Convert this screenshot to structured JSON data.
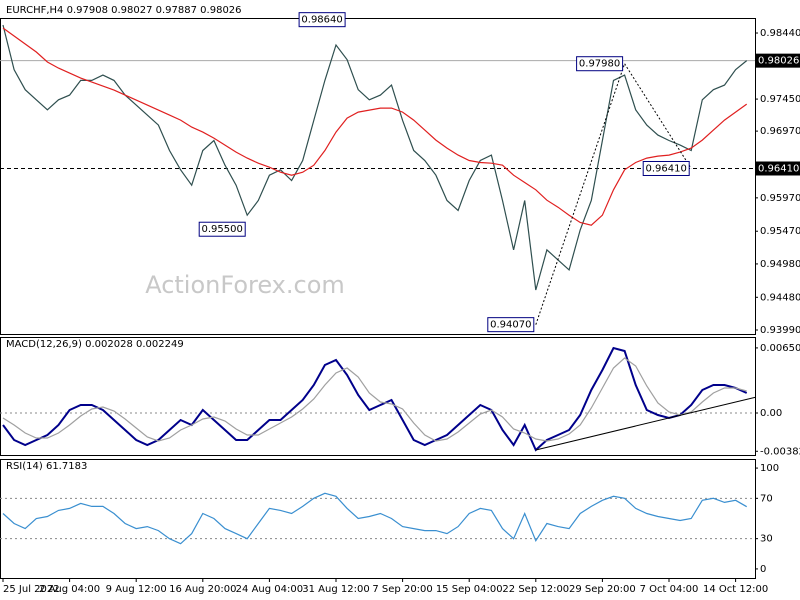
{
  "chart_data": [
    {
      "type": "line",
      "title": "EURCHF,H4 0.97908 0.98027 0.97887 0.98026",
      "watermark": "ActionForex.com",
      "categories": [
        "25 Jul 2022",
        null,
        null,
        null,
        null,
        null,
        "2 Aug 04:00",
        null,
        null,
        null,
        null,
        null,
        "9 Aug 12:00",
        null,
        null,
        null,
        null,
        null,
        "16 Aug 20:00",
        null,
        null,
        null,
        null,
        null,
        "24 Aug 04:00",
        null,
        null,
        null,
        null,
        null,
        "31 Aug 12:00",
        null,
        null,
        null,
        null,
        null,
        "7 Sep 20:00",
        null,
        null,
        null,
        null,
        null,
        "15 Sep 04:00",
        null,
        null,
        null,
        null,
        null,
        "22 Sep 12:00",
        null,
        null,
        null,
        null,
        null,
        "29 Sep 20:00",
        null,
        null,
        null,
        null,
        null,
        "7 Oct 04:00",
        null,
        null,
        null,
        null,
        null,
        "14 Oct 12:00",
        null
      ],
      "series": [
        {
          "color": "#2f4f4f",
          "values": [
            0.9856,
            0.9789,
            0.9759,
            0.9744,
            0.9729,
            0.9744,
            0.9751,
            0.9773,
            0.9773,
            0.9781,
            0.9773,
            0.9751,
            0.9736,
            0.9721,
            0.9706,
            0.9668,
            0.9639,
            0.9616,
            0.9668,
            0.9683,
            0.9646,
            0.9616,
            0.9571,
            0.9593,
            0.9631,
            0.9639,
            0.9623,
            0.9653,
            0.9713,
            0.9773,
            0.9826,
            0.9804,
            0.9759,
            0.9744,
            0.9751,
            0.9766,
            0.9713,
            0.9668,
            0.9653,
            0.9631,
            0.9593,
            0.9578,
            0.9623,
            0.9653,
            0.9661,
            0.9593,
            0.9519,
            0.9593,
            0.9459,
            0.9519,
            0.9504,
            0.9489,
            0.9549,
            0.9593,
            0.9683,
            0.9773,
            0.9781,
            0.9729,
            0.9706,
            0.9691,
            0.9683,
            0.9676,
            0.9668,
            0.9744,
            0.9759,
            0.9766,
            0.9789,
            0.98026
          ]
        },
        {
          "color": "#e02020",
          "values": [
            0.98515,
            0.98395,
            0.98275,
            0.98155,
            0.98005,
            0.97915,
            0.9784,
            0.97765,
            0.97705,
            0.97645,
            0.97585,
            0.9751,
            0.97435,
            0.9736,
            0.97285,
            0.9721,
            0.97135,
            0.9703,
            0.96955,
            0.96865,
            0.9676,
            0.96655,
            0.96565,
            0.9649,
            0.9643,
            0.96355,
            0.9631,
            0.96355,
            0.9646,
            0.9668,
            0.96955,
            0.97165,
            0.97255,
            0.97285,
            0.97315,
            0.97315,
            0.97255,
            0.97135,
            0.96985,
            0.96835,
            0.96715,
            0.9661,
            0.9653,
            0.965,
            0.9649,
            0.9646,
            0.9631,
            0.962,
            0.9609,
            0.95935,
            0.9583,
            0.9571,
            0.956,
            0.9556,
            0.9571,
            0.9609,
            0.9639,
            0.965,
            0.96565,
            0.96595,
            0.9661,
            0.96655,
            0.96715,
            0.96835,
            0.96985,
            0.97135,
            0.97255,
            0.97375
          ]
        }
      ],
      "ylim": [
        0.9393,
        0.98665
      ],
      "yticks": [
        {
          "value": 0.9844,
          "label": "0.98440"
        },
        {
          "value": 0.9745,
          "label": "0.97450"
        },
        {
          "value": 0.9697,
          "label": "0.96970"
        },
        {
          "value": 0.9597,
          "label": "0.95970"
        },
        {
          "value": 0.9547,
          "label": "0.95470"
        },
        {
          "value": 0.9498,
          "label": "0.94980"
        },
        {
          "value": 0.9448,
          "label": "0.94480"
        },
        {
          "value": 0.9399,
          "label": "0.93990"
        }
      ],
      "levels": [
        {
          "value": 0.98026,
          "label": "0.98026",
          "style": "solid"
        },
        {
          "value": 0.9641,
          "label": "0.96410",
          "style": "dashed"
        }
      ],
      "annotations": [
        {
          "text": "0.98640",
          "value": 0.9864,
          "index": 31
        },
        {
          "text": "0.95500",
          "value": 0.955,
          "index": 22
        },
        {
          "text": "0.97980",
          "value": 0.9798,
          "index": 56
        },
        {
          "text": "0.96410",
          "value": 0.9641,
          "index": 62
        },
        {
          "text": "0.94070",
          "value": 0.9407,
          "index": 48
        }
      ]
    },
    {
      "type": "line",
      "title": "MACD(12,26,9) 0.002028 0.002249",
      "series": [
        {
          "color": "#00008b",
          "values": [
            -0.0012,
            -0.0027,
            -0.0032,
            -0.0027,
            -0.0022,
            -0.0012,
            0.0003,
            0.0008,
            0.0008,
            0.0003,
            -0.0007,
            -0.0017,
            -0.0027,
            -0.0032,
            -0.0027,
            -0.0017,
            -0.0007,
            -0.0012,
            0.0003,
            -0.0007,
            -0.0017,
            -0.0027,
            -0.0027,
            -0.0017,
            -0.0007,
            -0.0007,
            0.0003,
            0.0013,
            0.0028,
            0.0048,
            0.0053,
            0.0038,
            0.0018,
            0.0003,
            0.0008,
            0.0013,
            -0.0007,
            -0.0027,
            -0.0032,
            -0.0027,
            -0.0022,
            -0.0012,
            -0.0002,
            0.0008,
            0.0003,
            -0.0017,
            -0.0032,
            -0.0012,
            -0.0037,
            -0.0027,
            -0.0022,
            -0.0017,
            -0.0002,
            0.0023,
            0.0043,
            0.0065,
            0.0062,
            0.0028,
            0.0003,
            -0.0002,
            -0.0005,
            -0.0002,
            0.0008,
            0.0023,
            0.0028,
            0.0028,
            0.0025,
            0.002
          ]
        },
        {
          "color": "#a0a0a0",
          "values": [
            -0.0005,
            -0.0012,
            -0.002,
            -0.0025,
            -0.0025,
            -0.002,
            -0.0012,
            -0.0003,
            0.0004,
            0.0006,
            0.0002,
            -0.0006,
            -0.0015,
            -0.0024,
            -0.0028,
            -0.0025,
            -0.0017,
            -0.0012,
            -0.0006,
            -0.0004,
            -0.0008,
            -0.0016,
            -0.0022,
            -0.0022,
            -0.0016,
            -0.001,
            -0.0004,
            0.0004,
            0.0014,
            0.0028,
            0.004,
            0.0045,
            0.0036,
            0.002,
            0.0011,
            0.0009,
            0.0004,
            -0.001,
            -0.0022,
            -0.0028,
            -0.0026,
            -0.0019,
            -0.001,
            -0.0001,
            0.0003,
            -0.0004,
            -0.0016,
            -0.002,
            -0.0026,
            -0.0028,
            -0.0026,
            -0.0021,
            -0.0012,
            0.0005,
            0.0025,
            0.0045,
            0.0055,
            0.0047,
            0.0027,
            0.001,
            0.0001,
            -0.0002,
            0.0001,
            0.0011,
            0.002,
            0.0025,
            0.0025,
            0.0022
          ]
        }
      ],
      "ylim": [
        -0.0042,
        0.0076
      ],
      "yticks": [
        {
          "value": 0.006509,
          "label": "0.006509"
        },
        {
          "value": 0,
          "label": "0.00"
        },
        {
          "value": -0.003828,
          "label": "-0.003828"
        }
      ],
      "levels": [
        0
      ]
    },
    {
      "type": "line",
      "title": "RSI(14) 61.7183",
      "series": [
        {
          "color": "#3a8fd0",
          "values": [
            55,
            45,
            40,
            50,
            52,
            58,
            60,
            65,
            62,
            62,
            55,
            45,
            40,
            42,
            38,
            30,
            25,
            35,
            55,
            50,
            40,
            35,
            30,
            45,
            60,
            58,
            55,
            62,
            70,
            75,
            72,
            60,
            50,
            52,
            55,
            50,
            42,
            40,
            38,
            38,
            35,
            42,
            55,
            60,
            58,
            40,
            30,
            55,
            28,
            45,
            42,
            40,
            55,
            62,
            68,
            72,
            70,
            60,
            55,
            52,
            50,
            48,
            50,
            68,
            70,
            66,
            68,
            61.7183
          ]
        }
      ],
      "ylim": [
        -9,
        109
      ],
      "yticks": [
        0,
        30,
        70,
        100
      ],
      "levels": [
        30,
        70
      ]
    }
  ]
}
